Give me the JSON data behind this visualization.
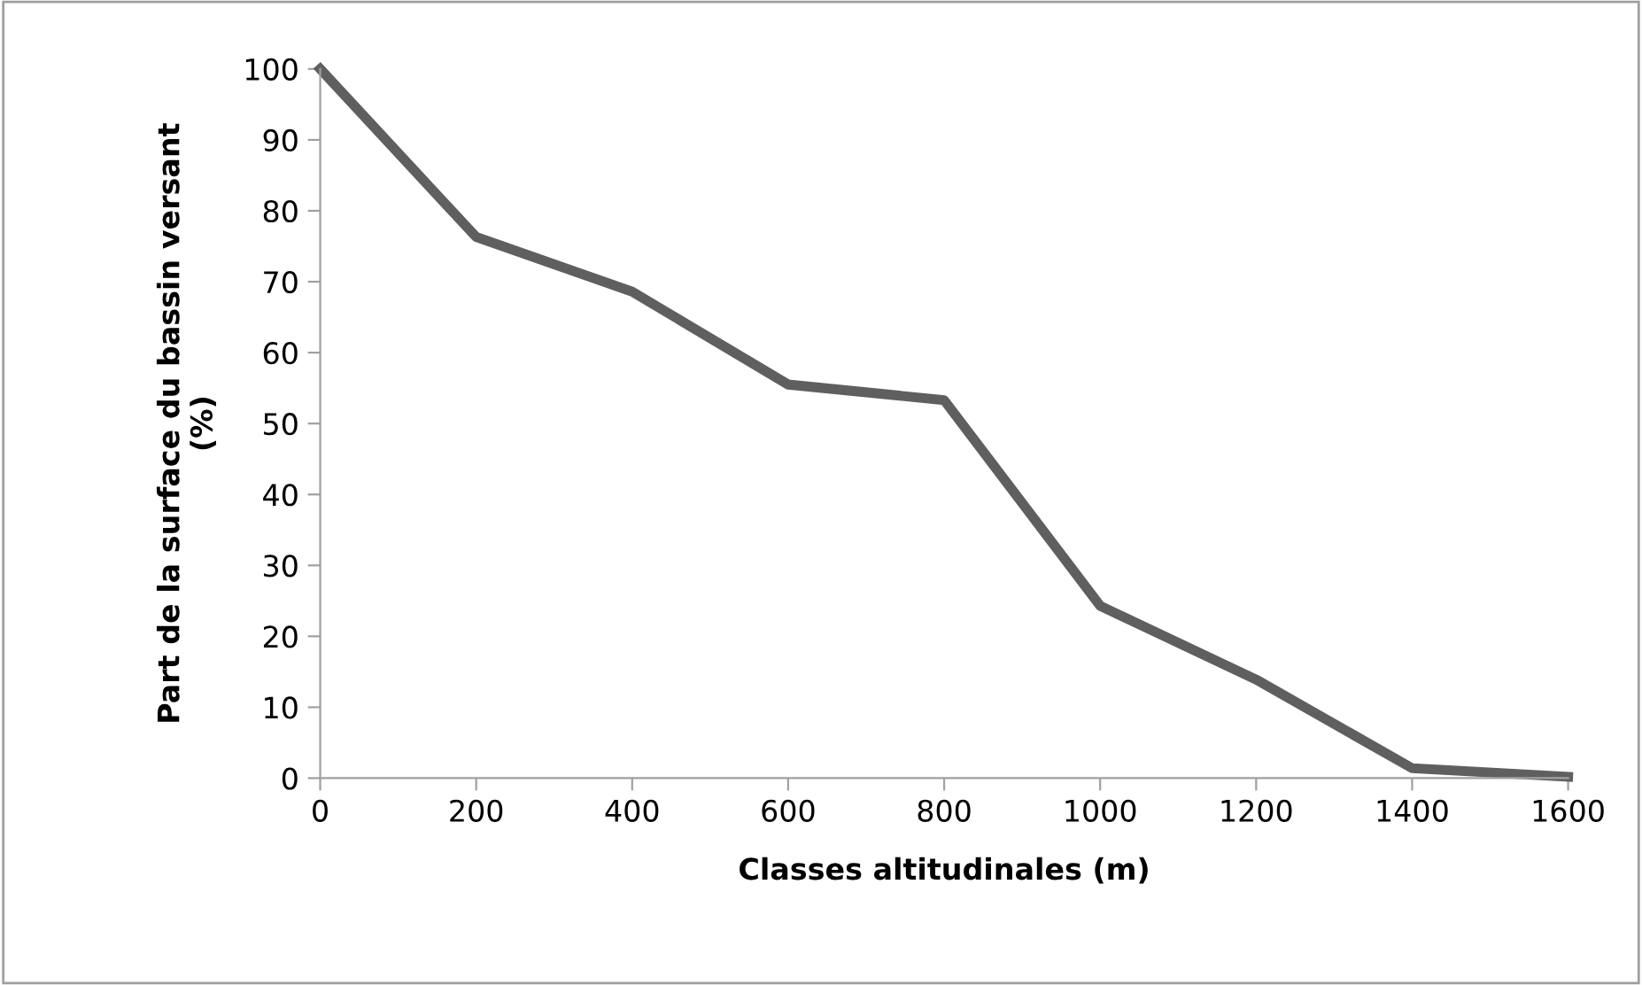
{
  "chart_data": {
    "type": "line",
    "xlabel": "Classes altitudinales (m)",
    "ylabel": "Part de la surface du bassin versant\n(%)",
    "x": [
      0,
      200,
      400,
      600,
      800,
      1000,
      1200,
      1400,
      1600
    ],
    "series": [
      {
        "color": "#5f5f5f",
        "values": [
          100,
          76.3,
          68.6,
          55.5,
          53.3,
          24.3,
          13.9,
          1.4,
          0.2
        ]
      }
    ],
    "xlim": [
      0,
      1600
    ],
    "xticks": [
      0,
      200,
      400,
      600,
      800,
      1000,
      1200,
      1400,
      1600
    ],
    "ylim": [
      0,
      100
    ],
    "yticks": [
      0,
      10,
      20,
      30,
      40,
      50,
      60,
      70,
      80,
      90,
      100
    ],
    "grid": false,
    "legend": false,
    "marker": "none",
    "line_style": "solid"
  }
}
